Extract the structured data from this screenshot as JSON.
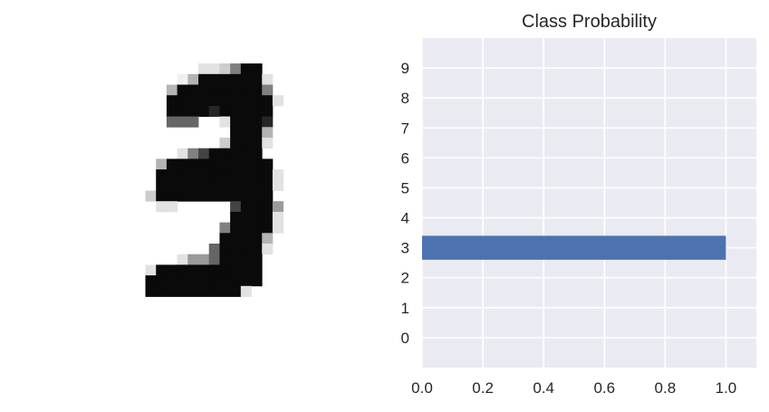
{
  "image_panel": {
    "description_icon": "handwritten-digit-image",
    "grid_rows": 28,
    "grid_cols": 28,
    "pixels": [
      "............................",
      "............................",
      "............................",
      "..........2236@@............",
      "........14@@@@@@2...........",
      ".......4@@@@@@@@6...........",
      ".......@@@@@@@@@@2..........",
      ".......@@@@9@@@@@...........",
      ".......777..2@@@9...........",
      ".............@@@4...........",
      "............3@@@2...........",
      "........268@@@@@............",
      "......4@@@@@@@@@@...........",
      "......@@@@@@@@@@@2..........",
      "......@@@@@@@@@@@2..........",
      ".....3@@@@@@@@@@@...........",
      "......22.....8@@@5..........",
      ".............@@@@2..........",
      "............6@@@@2..........",
      "............@@@@4...........",
      "...........7@@@@2...........",
      "........2557@@@@............",
      ".....2@@@@@@@@@@............",
      ".....@@@@@@@@@@@............",
      ".....@@@@@@@@@2.............",
      "............................",
      "............................",
      "............................"
    ]
  },
  "chart_data": {
    "type": "bar",
    "orientation": "horizontal",
    "title": "Class Probability",
    "categories": [
      "0",
      "1",
      "2",
      "3",
      "4",
      "5",
      "6",
      "7",
      "8",
      "9"
    ],
    "values": [
      0.0,
      0.0,
      0.0,
      1.0,
      0.0,
      0.0,
      0.0,
      0.0,
      0.0,
      0.0
    ],
    "xlim": [
      0.0,
      1.1
    ],
    "xticks": [
      "0.0",
      "0.2",
      "0.4",
      "0.6",
      "0.8",
      "1.0"
    ],
    "xtick_values": [
      0.0,
      0.2,
      0.4,
      0.6,
      0.8,
      1.0
    ],
    "grid": true,
    "bar_color": "#4c72b0",
    "background_color": "#eaeaf2",
    "grid_color": "#ffffff"
  }
}
